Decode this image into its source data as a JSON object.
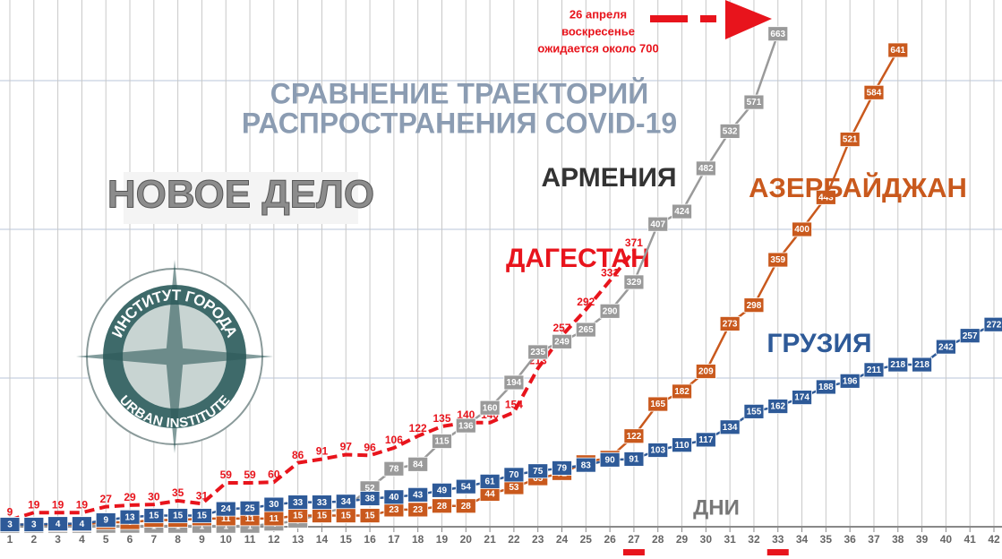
{
  "chart_data": {
    "type": "line",
    "title": [
      "СРАВНЕНИЕ ТРАЕКТОРИЙ",
      "РАСПРОСТРАНЕНИЯ COVID-19"
    ],
    "annotation": [
      "26 апреля",
      "воскресенье",
      "ожидается около 700"
    ],
    "xlabel": "ДНИ",
    "logos": {
      "newspaper": "НОВОЕ ДЕЛО",
      "institute_top": "ИНСТИТУТ ГОРОДА",
      "institute_bottom": "URBAN INSTITUTE"
    },
    "x": [
      1,
      2,
      3,
      4,
      5,
      6,
      7,
      8,
      9,
      10,
      11,
      12,
      13,
      14,
      15,
      16,
      17,
      18,
      19,
      20,
      21,
      22,
      23,
      24,
      25,
      26,
      27,
      28,
      29,
      30,
      31,
      32,
      33,
      34,
      35,
      36,
      37,
      38,
      39,
      40,
      41,
      42
    ],
    "highlight_days": [
      27,
      33
    ],
    "xlim": [
      1,
      42
    ],
    "ylim": [
      0,
      700
    ],
    "hlines": [
      200,
      400,
      600
    ],
    "series": [
      {
        "name": "ДАГЕСТАН",
        "color": "#e8141c",
        "values": [
          9,
          19,
          19,
          19,
          27,
          29,
          30,
          35,
          31,
          59,
          59,
          60,
          86,
          91,
          97,
          96,
          106,
          122,
          135,
          140,
          140,
          154,
          213,
          257,
          292,
          331,
          371,
          null,
          null,
          null,
          null,
          null,
          null,
          null,
          null,
          null,
          null,
          null,
          null,
          null,
          null,
          null
        ]
      },
      {
        "name": "АРМЕНИЯ",
        "color": "#9a9a9a",
        "values": [
          1,
          1,
          1,
          1,
          1,
          1,
          1,
          1,
          1,
          1,
          1,
          4,
          8,
          18,
          26,
          52,
          78,
          84,
          115,
          136,
          160,
          194,
          235,
          249,
          265,
          290,
          329,
          407,
          424,
          482,
          532,
          571,
          663,
          null,
          null,
          null,
          null,
          null,
          null,
          null,
          null,
          null
        ]
      },
      {
        "name": "АЗЕРБАЙДЖАН",
        "color": "#c9591d",
        "values": [
          3,
          3,
          3,
          3,
          6,
          6,
          9,
          9,
          11,
          11,
          11,
          11,
          15,
          15,
          15,
          15,
          23,
          23,
          28,
          28,
          44,
          53,
          65,
          72,
          87,
          93,
          122,
          165,
          182,
          209,
          273,
          298,
          359,
          400,
          443,
          521,
          584,
          641,
          null,
          null,
          null,
          null
        ]
      },
      {
        "name": "ГРУЗИЯ",
        "color": "#2e5a98",
        "values": [
          3,
          3,
          4,
          4,
          9,
          13,
          15,
          15,
          15,
          24,
          25,
          30,
          33,
          33,
          34,
          38,
          40,
          43,
          49,
          54,
          61,
          70,
          75,
          79,
          83,
          90,
          91,
          103,
          110,
          117,
          134,
          155,
          162,
          174,
          188,
          196,
          211,
          218,
          218,
          242,
          257,
          272
        ]
      }
    ]
  }
}
